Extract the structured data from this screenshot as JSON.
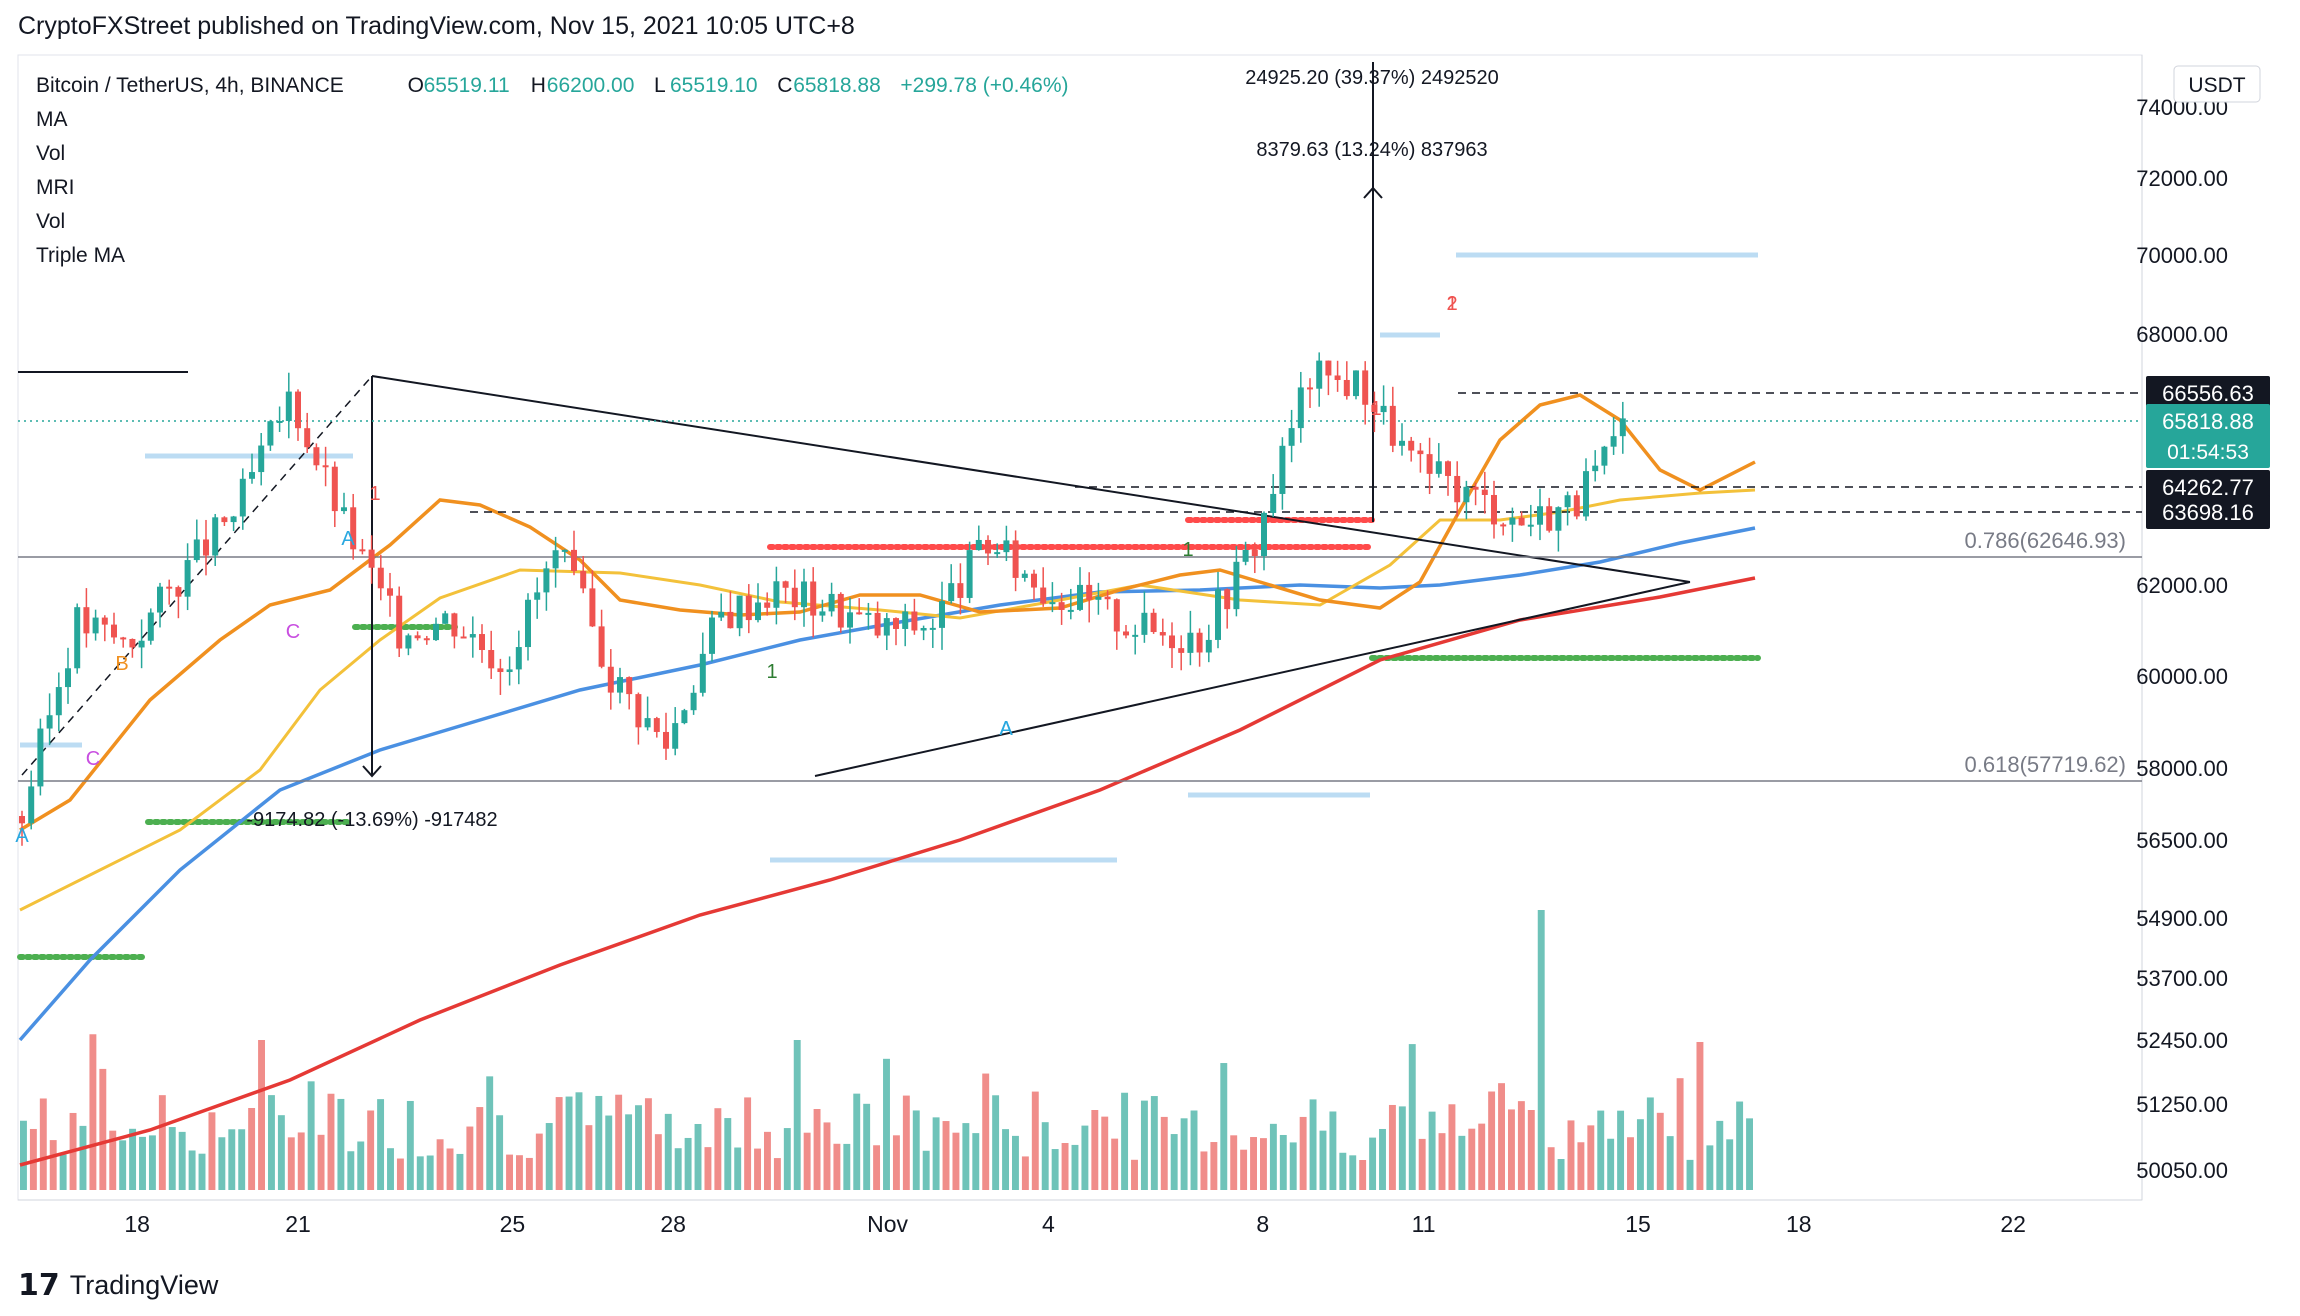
{
  "header": {
    "published_text": "CryptoFXStreet published on TradingView.com, Nov 15, 2021 10:05 UTC+8"
  },
  "legend": {
    "symbol": "Bitcoin / TetherUS, 4h, BINANCE",
    "o_label": "O",
    "o_value": "65519.11",
    "h_label": "H",
    "h_value": "66200.00",
    "l_label": "L",
    "l_value": "65519.10",
    "c_label": "C",
    "c_value": "65818.88",
    "change": "+299.78 (+0.46%)",
    "indicators": [
      "MA",
      "Vol",
      "MRI",
      "Vol",
      "Triple MA"
    ]
  },
  "currency_button": "USDT",
  "footer": {
    "logo_text": "TradingView"
  },
  "colors": {
    "up": "#26a69a",
    "down": "#ef5350",
    "ma_orange": "#f0901f",
    "ma_yellow": "#f3c13a",
    "ma_blue": "#4a90e2",
    "ma_red": "#e53935",
    "dots_red": "#ff4a4a",
    "dots_green": "#4caf50",
    "light_blue": "#bcdcf3",
    "dark_tag": "#131722",
    "price_tag": "#26a69a"
  },
  "chart_data": {
    "type": "candlestick",
    "title": "Bitcoin / TetherUS, 4h, BINANCE",
    "y_ticks": [
      "74000.00",
      "72000.00",
      "70000.00",
      "68000.00",
      "62000.00",
      "60000.00",
      "58000.00",
      "56500.00",
      "54900.00",
      "53700.00",
      "52450.00",
      "51250.00",
      "50050.00"
    ],
    "x_ticks": [
      "18",
      "21",
      "25",
      "28",
      "Nov",
      "4",
      "8",
      "11",
      "15",
      "18",
      "22"
    ],
    "price_labels": [
      {
        "value": "66556.63",
        "style": "dark"
      },
      {
        "value": "65818.88",
        "style": "green",
        "sub": "01:54:53"
      },
      {
        "value": "64262.77",
        "style": "dark"
      },
      {
        "value": "63698.16",
        "style": "dark"
      }
    ],
    "fib_levels": [
      {
        "label": "0.786(62646.93)",
        "price": 62646.93
      },
      {
        "label": "0.618(57719.62)",
        "price": 57719.62
      }
    ],
    "horizontal_levels": [
      66556.63,
      64262.77,
      63698.16
    ],
    "annotations": [
      "24925.20 (39.37%) 2492520",
      "8379.63 (13.24%) 837963",
      "-9174.82 (-13.69%) -917482"
    ],
    "markers": [
      "1",
      "A",
      "B",
      "C",
      "C",
      "A",
      "1",
      "1",
      "A",
      "1",
      "1",
      "2",
      "A"
    ],
    "ohlc": {
      "open": 65519.11,
      "high": 66200.0,
      "low": 65519.1,
      "close": 65818.88,
      "change": 299.78,
      "change_pct": 0.46
    },
    "approx_close_path": [
      [
        "Oct 16",
        57000
      ],
      [
        "Oct 17",
        61200
      ],
      [
        "Oct 18",
        60700
      ],
      [
        "Oct 19",
        62300
      ],
      [
        "Oct 20",
        63800
      ],
      [
        "Oct 21",
        66500
      ],
      [
        "Oct 22",
        63500
      ],
      [
        "Oct 23",
        61000
      ],
      [
        "Oct 24",
        61300
      ],
      [
        "Oct 25",
        60300
      ],
      [
        "Oct 26",
        62800
      ],
      [
        "Oct 27",
        60000
      ],
      [
        "Oct 28",
        58500
      ],
      [
        "Oct 29",
        61300
      ],
      [
        "Oct 30",
        61900
      ],
      [
        "Oct 31",
        61600
      ],
      [
        "Nov 1",
        61000
      ],
      [
        "Nov 2",
        61200
      ],
      [
        "Nov 3",
        63000
      ],
      [
        "Nov 4",
        62000
      ],
      [
        "Nov 5",
        61500
      ],
      [
        "Nov 6",
        61000
      ],
      [
        "Nov 7",
        60900
      ],
      [
        "Nov 8",
        63000
      ],
      [
        "Nov 9",
        67000
      ],
      [
        "Nov 10",
        66800
      ],
      [
        "Nov 11",
        64800
      ],
      [
        "Nov 12",
        64200
      ],
      [
        "Nov 13",
        63500
      ],
      [
        "Nov 14",
        64000
      ],
      [
        "Nov 15",
        65818.88
      ]
    ]
  }
}
